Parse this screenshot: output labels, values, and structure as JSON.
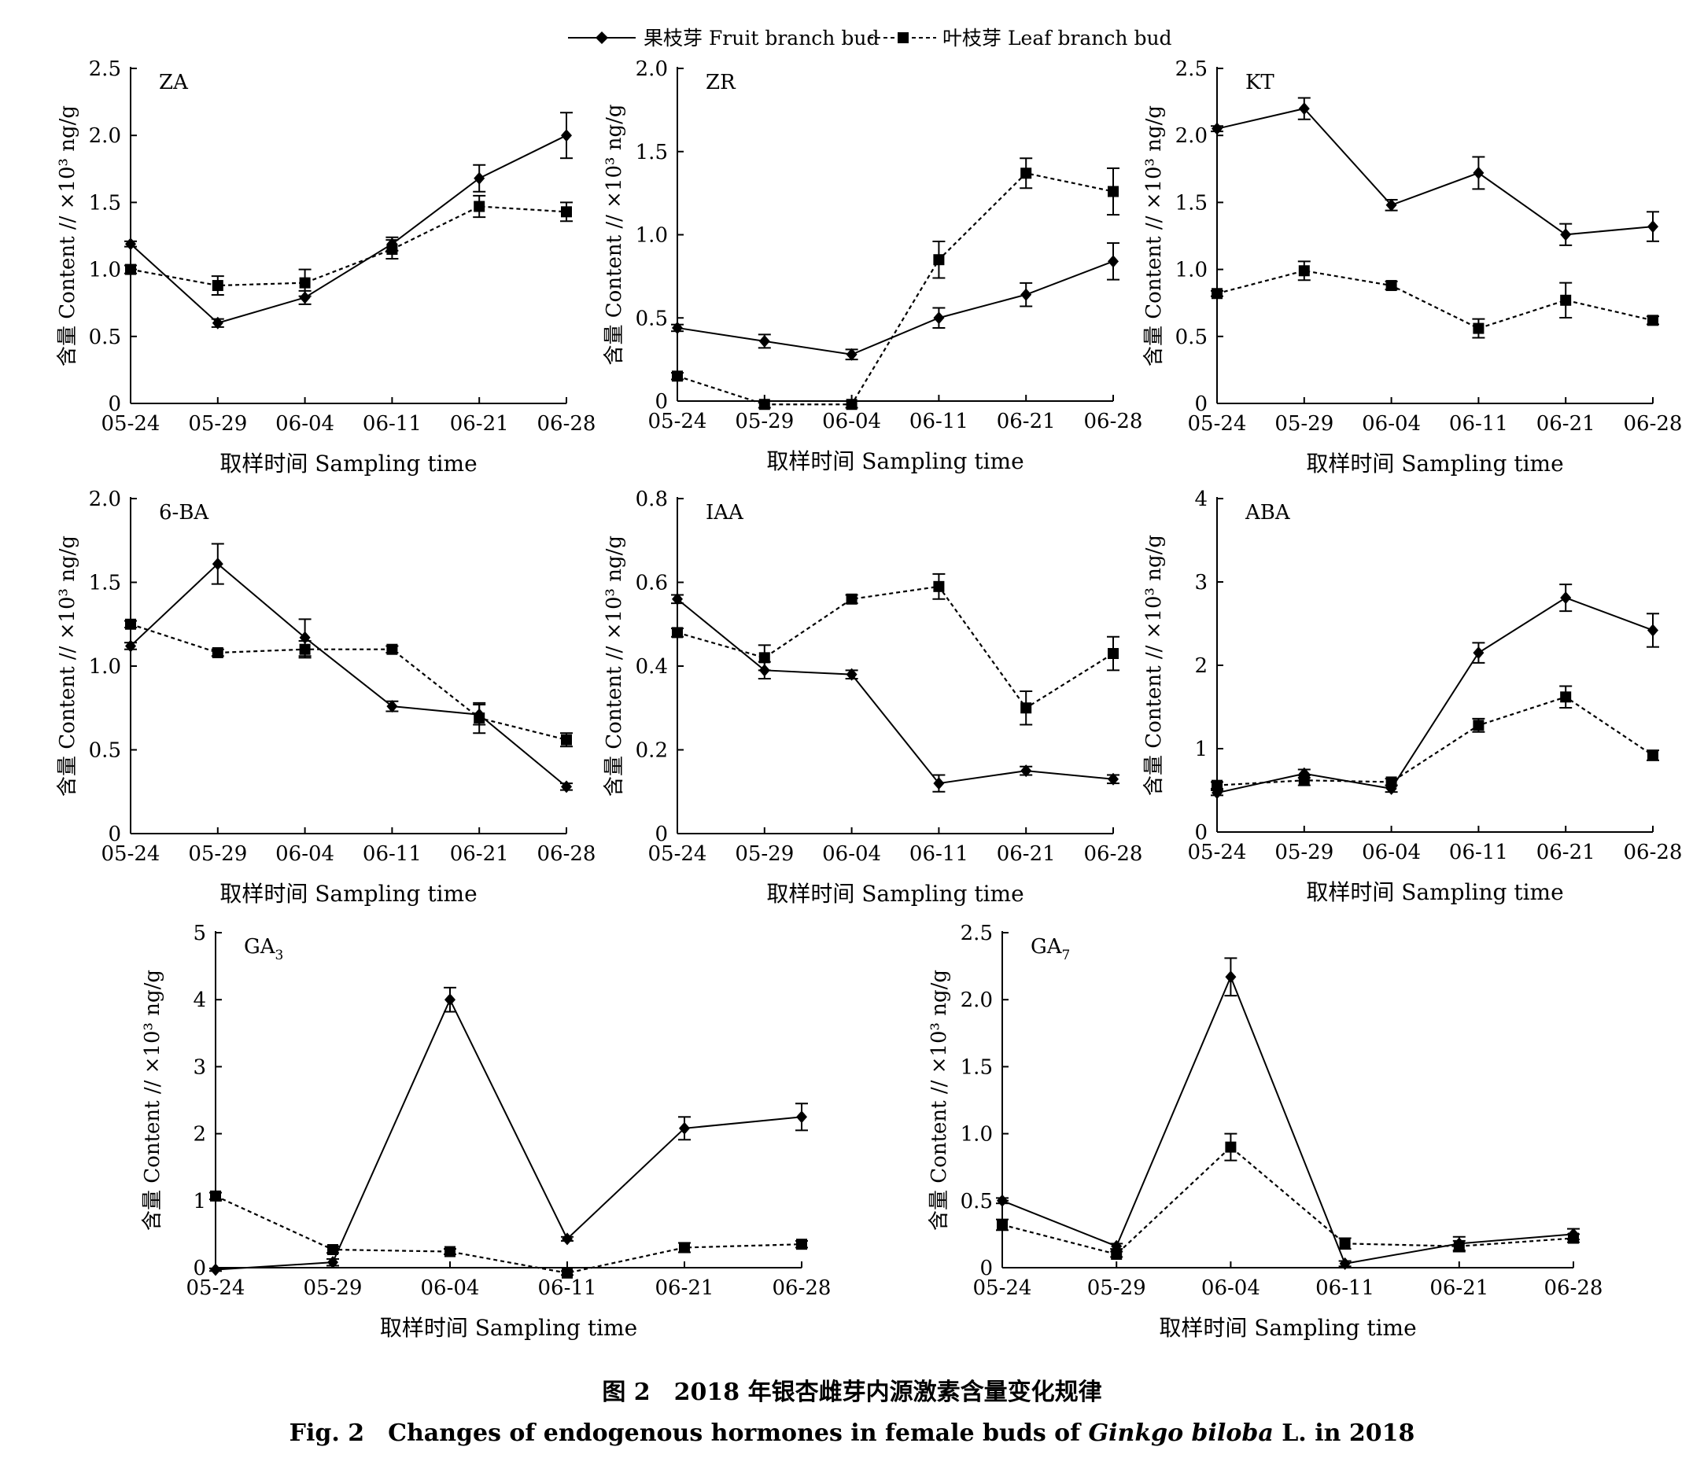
{
  "legend": {
    "fruit_label": "果枝芽 Fruit branch bud",
    "leaf_label": "叶枝芽 Leaf branch bud"
  },
  "common": {
    "xlabel": "取样时间 Sampling time",
    "ylabel": "含量 Content // ×10³ ng/g",
    "categories": [
      "05-24",
      "05-29",
      "06-04",
      "06-11",
      "06-21",
      "06-28"
    ]
  },
  "chart_data": [
    {
      "type": "line",
      "panel_label": "ZA",
      "ylim": [
        0,
        2.5
      ],
      "yticks": [
        "0",
        "0.5",
        "1.0",
        "1.5",
        "2.0",
        "2.5"
      ],
      "series": [
        {
          "name": "果枝芽 Fruit branch bud",
          "values": [
            1.19,
            0.6,
            0.79,
            1.19,
            1.68,
            2.0
          ],
          "errors": [
            0.02,
            0.03,
            0.05,
            0.05,
            0.1,
            0.17
          ]
        },
        {
          "name": "叶枝芽 Leaf branch bud",
          "values": [
            1.0,
            0.88,
            0.9,
            1.15,
            1.47,
            1.43
          ],
          "errors": [
            0.03,
            0.07,
            0.1,
            0.07,
            0.08,
            0.07
          ]
        }
      ]
    },
    {
      "type": "line",
      "panel_label": "ZR",
      "ylim": [
        0,
        2.0
      ],
      "yticks": [
        "0",
        "0.5",
        "1.0",
        "1.5",
        "2.0"
      ],
      "series": [
        {
          "name": "果枝芽 Fruit branch bud",
          "values": [
            0.44,
            0.36,
            0.28,
            0.5,
            0.64,
            0.84
          ],
          "errors": [
            0.02,
            0.04,
            0.03,
            0.06,
            0.07,
            0.11
          ]
        },
        {
          "name": "叶枝芽 Leaf branch bud",
          "values": [
            0.15,
            -0.02,
            -0.02,
            0.85,
            1.37,
            1.26
          ],
          "errors": [
            0.02,
            0.02,
            0.02,
            0.11,
            0.09,
            0.14
          ]
        }
      ]
    },
    {
      "type": "line",
      "panel_label": "KT",
      "ylim": [
        0,
        2.5
      ],
      "yticks": [
        "0",
        "0.5",
        "1.0",
        "1.5",
        "2.0",
        "2.5"
      ],
      "series": [
        {
          "name": "果枝芽 Fruit branch bud",
          "values": [
            2.05,
            2.2,
            1.48,
            1.72,
            1.26,
            1.32
          ],
          "errors": [
            0.02,
            0.08,
            0.04,
            0.12,
            0.08,
            0.11
          ]
        },
        {
          "name": "叶枝芽 Leaf branch bud",
          "values": [
            0.82,
            0.99,
            0.88,
            0.56,
            0.77,
            0.62
          ],
          "errors": [
            0.02,
            0.07,
            0.03,
            0.07,
            0.13,
            0.03
          ]
        }
      ]
    },
    {
      "type": "line",
      "panel_label": "6-BA",
      "ylim": [
        0,
        2.0
      ],
      "yticks": [
        "0",
        "0.5",
        "1.0",
        "1.5",
        "2.0"
      ],
      "series": [
        {
          "name": "果枝芽 Fruit branch bud",
          "values": [
            1.12,
            1.61,
            1.17,
            0.76,
            0.71,
            0.28
          ],
          "errors": [
            0.02,
            0.12,
            0.11,
            0.03,
            0.06,
            0.02
          ]
        },
        {
          "name": "叶枝芽 Leaf branch bud",
          "values": [
            1.25,
            1.08,
            1.1,
            1.1,
            0.69,
            0.56
          ],
          "errors": [
            0.02,
            0.02,
            0.05,
            0.02,
            0.09,
            0.04
          ]
        }
      ]
    },
    {
      "type": "line",
      "panel_label": "IAA",
      "ylim": [
        0,
        0.8
      ],
      "yticks": [
        "0",
        "0.2",
        "0.4",
        "0.6",
        "0.8"
      ],
      "series": [
        {
          "name": "果枝芽 Fruit branch bud",
          "values": [
            0.56,
            0.39,
            0.38,
            0.12,
            0.15,
            0.13
          ],
          "errors": [
            0.01,
            0.02,
            0.01,
            0.02,
            0.01,
            0.01
          ]
        },
        {
          "name": "叶枝芽 Leaf branch bud",
          "values": [
            0.48,
            0.42,
            0.56,
            0.59,
            0.3,
            0.43
          ],
          "errors": [
            0.01,
            0.03,
            0.01,
            0.03,
            0.04,
            0.04
          ]
        }
      ]
    },
    {
      "type": "line",
      "panel_label": "ABA",
      "ylim": [
        0,
        4
      ],
      "yticks": [
        "0",
        "1",
        "2",
        "3",
        "4"
      ],
      "series": [
        {
          "name": "果枝芽 Fruit branch bud",
          "values": [
            0.47,
            0.7,
            0.52,
            2.15,
            2.81,
            2.42
          ],
          "errors": [
            0.03,
            0.05,
            0.04,
            0.12,
            0.16,
            0.2
          ]
        },
        {
          "name": "叶枝芽 Leaf branch bud",
          "values": [
            0.56,
            0.62,
            0.6,
            1.28,
            1.62,
            0.92
          ],
          "errors": [
            0.04,
            0.06,
            0.04,
            0.08,
            0.13,
            0.06
          ]
        }
      ]
    },
    {
      "type": "line",
      "panel_label": "GA",
      "panel_sub": "3",
      "ylim": [
        0,
        5
      ],
      "yticks": [
        "0",
        "1",
        "2",
        "3",
        "4",
        "5"
      ],
      "series": [
        {
          "name": "果枝芽 Fruit branch bud",
          "values": [
            -0.03,
            0.08,
            4.0,
            0.43,
            2.08,
            2.25
          ],
          "errors": [
            0.02,
            0.05,
            0.18,
            0.03,
            0.17,
            0.2
          ]
        },
        {
          "name": "叶枝芽 Leaf branch bud",
          "values": [
            1.07,
            0.27,
            0.24,
            -0.08,
            0.3,
            0.35
          ],
          "errors": [
            0.05,
            0.05,
            0.04,
            0.03,
            0.07,
            0.05
          ]
        }
      ]
    },
    {
      "type": "line",
      "panel_label": "GA",
      "panel_sub": "7",
      "ylim": [
        0,
        2.5
      ],
      "yticks": [
        "0",
        "0.5",
        "1.0",
        "1.5",
        "2.0",
        "2.5"
      ],
      "series": [
        {
          "name": "果枝芽 Fruit branch bud",
          "values": [
            0.5,
            0.16,
            2.17,
            0.03,
            0.18,
            0.25
          ],
          "errors": [
            0.02,
            0.02,
            0.14,
            0.02,
            0.05,
            0.04
          ]
        },
        {
          "name": "叶枝芽 Leaf branch bud",
          "values": [
            0.32,
            0.1,
            0.9,
            0.18,
            0.16,
            0.22
          ],
          "errors": [
            0.04,
            0.02,
            0.1,
            0.04,
            0.04,
            0.03
          ]
        }
      ]
    }
  ],
  "caption": {
    "zh": "图 2　2018 年银杏雌芽内源激素含量变化规律",
    "en_prefix": "Fig. 2　Changes of endogenous hormones in female buds of ",
    "en_species": "Ginkgo biloba",
    "en_suffix": " L.  in 2018"
  }
}
